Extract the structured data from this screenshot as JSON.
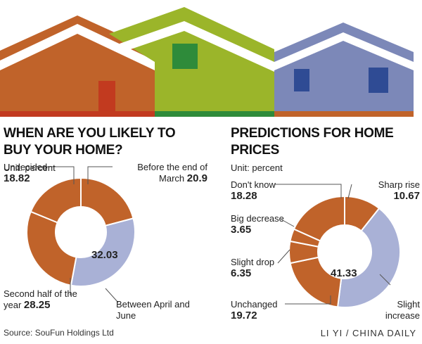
{
  "chart_data": [
    {
      "type": "pie",
      "title": "WHEN ARE YOU LIKELY TO BUY YOUR HOME?",
      "subtitle": "Unit: percent",
      "categories": [
        "Before the end of March",
        "Between April and June",
        "Second half of the year",
        "Undecided"
      ],
      "values": [
        20.9,
        32.03,
        28.25,
        18.82
      ],
      "colors": [
        "#c0632a",
        "#a9b1d6",
        "#c0632a",
        "#c0632a"
      ]
    },
    {
      "type": "pie",
      "title": "PREDICTIONS FOR HOME PRICES",
      "subtitle": "Unit: percent",
      "categories": [
        "Sharp rise",
        "Slight increase",
        "Unchanged",
        "Slight drop",
        "Big decrease",
        "Don't know"
      ],
      "values": [
        10.67,
        41.33,
        19.72,
        6.35,
        3.65,
        18.28
      ],
      "colors": [
        "#c0632a",
        "#a9b1d6",
        "#c0632a",
        "#c0632a",
        "#c0632a",
        "#c0632a"
      ]
    }
  ],
  "source": "Source: SouFun Holdings Ltd",
  "credit": "LI YI / CHINA DAILY"
}
